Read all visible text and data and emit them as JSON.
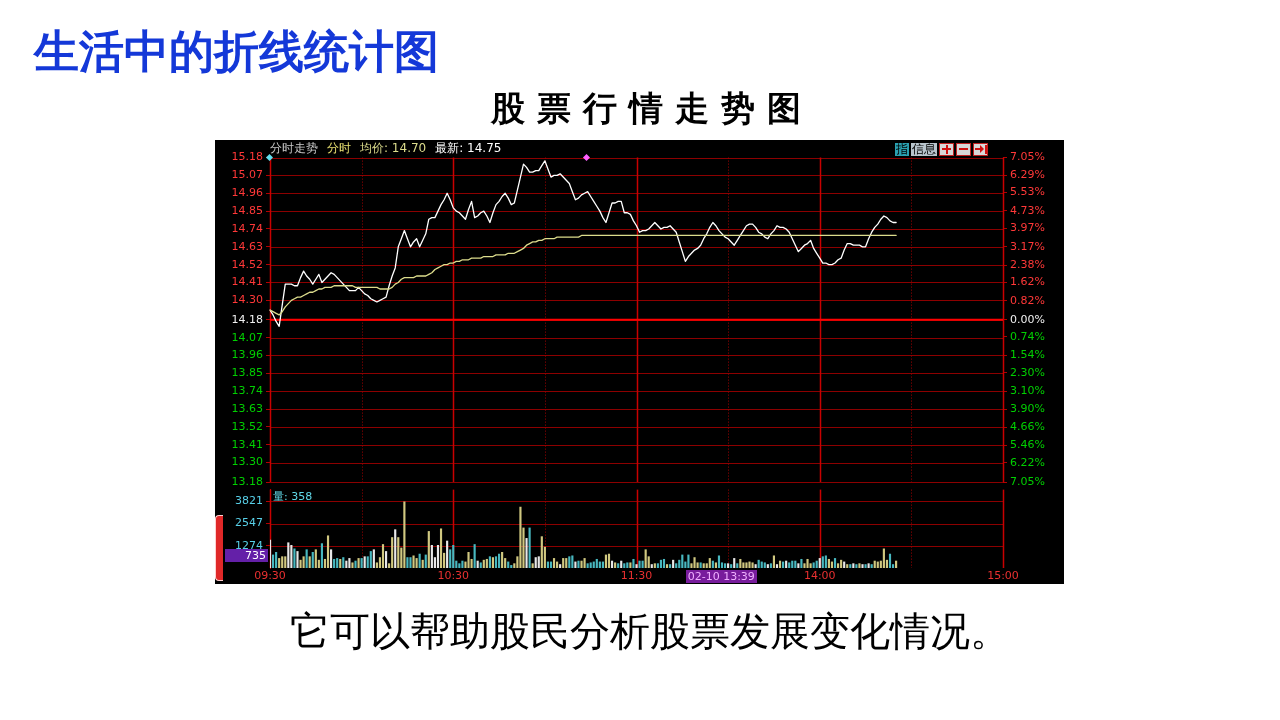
{
  "chart_data": [
    {
      "type": "line",
      "title": "生活中的折线统计图",
      "subtitle": "股票行情走势图",
      "categories": [
        null,
        null,
        null,
        null,
        null,
        null,
        null,
        null,
        null,
        null,
        null,
        null,
        null,
        null,
        null,
        null,
        null,
        null,
        null,
        null,
        null,
        null,
        null,
        null,
        null,
        null,
        null,
        null,
        null,
        null,
        null,
        null,
        null,
        null,
        null,
        null,
        null,
        null,
        null,
        null,
        null,
        null,
        null,
        null,
        null,
        null,
        null,
        null,
        null,
        null,
        null,
        null,
        null,
        null,
        null,
        null,
        null,
        null,
        null,
        null,
        null,
        null,
        null,
        null,
        null,
        null,
        null,
        null,
        null,
        null,
        null,
        null,
        null,
        null,
        null,
        null,
        null,
        null,
        null,
        null,
        null,
        null,
        null,
        null,
        null,
        null,
        null,
        null,
        null,
        null,
        null,
        null,
        null,
        null,
        null,
        null,
        null,
        null,
        null,
        null,
        null,
        null,
        null,
        null,
        null,
        null,
        null,
        null,
        null,
        null,
        null,
        null,
        null,
        null,
        null,
        null,
        null,
        null,
        null,
        null,
        null,
        null,
        null,
        null,
        null,
        null,
        null,
        null,
        null,
        null,
        null,
        null,
        null,
        null,
        null,
        null,
        null,
        null,
        null,
        null,
        null,
        null,
        null,
        null,
        null,
        null,
        null,
        null,
        null,
        null,
        null,
        null,
        null,
        null,
        null,
        null,
        null,
        null,
        null,
        null,
        null,
        null,
        null,
        null,
        null,
        null,
        null,
        null,
        null,
        null,
        null,
        null,
        null,
        null,
        null,
        null,
        null,
        null,
        null,
        null,
        null,
        null,
        null,
        null,
        null,
        null,
        null,
        null,
        null,
        null,
        null,
        null,
        null,
        null,
        null,
        null,
        null,
        null,
        null,
        null,
        null,
        null,
        null,
        null,
        null,
        null,
        null,
        null,
        null,
        null,
        null,
        null,
        null,
        null,
        null,
        null,
        null,
        null,
        null,
        null,
        null,
        null,
        null,
        null,
        null,
        null,
        null,
        null,
        null,
        null,
        null,
        null,
        null,
        null,
        null,
        null,
        null,
        null,
        null,
        null,
        null
      ],
      "series": [
        {
          "name": "均价: 14.70",
          "color": "#dcdc8c",
          "values": [
            14.24,
            14.23,
            14.22,
            14.21,
            14.23,
            14.26,
            14.28,
            14.3,
            14.31,
            14.32,
            14.32,
            14.33,
            14.34,
            14.35,
            14.35,
            14.36,
            14.37,
            14.37,
            14.38,
            14.38,
            14.38,
            14.39,
            14.39,
            14.39,
            14.39,
            14.39,
            14.39,
            14.39,
            14.38,
            14.38,
            14.38,
            14.38,
            14.38,
            14.38,
            14.38,
            14.38,
            14.37,
            14.37,
            14.37,
            14.37,
            14.38,
            14.4,
            14.41,
            14.43,
            14.44,
            14.44,
            14.44,
            14.44,
            14.45,
            14.45,
            14.45,
            14.45,
            14.46,
            14.47,
            14.49,
            14.5,
            14.51,
            14.52,
            14.52,
            14.53,
            14.53,
            14.54,
            14.54,
            14.55,
            14.55,
            14.55,
            14.56,
            14.56,
            14.56,
            14.56,
            14.57,
            14.57,
            14.57,
            14.57,
            14.58,
            14.58,
            14.58,
            14.58,
            14.59,
            14.59,
            14.59,
            14.6,
            14.61,
            14.62,
            14.64,
            14.65,
            14.66,
            14.66,
            14.67,
            14.67,
            14.68,
            14.68,
            14.68,
            14.68,
            14.69,
            14.69,
            14.69,
            14.69,
            14.69,
            14.69,
            14.69,
            14.69,
            14.7,
            14.7,
            14.7,
            14.7,
            14.7,
            14.7,
            14.7,
            14.7,
            14.7,
            14.7,
            14.7,
            14.7,
            14.7,
            14.7,
            14.7,
            14.7,
            14.7,
            14.7,
            14.7,
            14.7,
            14.7,
            14.7,
            14.7,
            14.7,
            14.7,
            14.7,
            14.7,
            14.7,
            14.7,
            14.7,
            14.7,
            14.7,
            14.7,
            14.7,
            14.7,
            14.7,
            14.7,
            14.7,
            14.7,
            14.7,
            14.7,
            14.7,
            14.7,
            14.7,
            14.7,
            14.7,
            14.7,
            14.7,
            14.7,
            14.7,
            14.7,
            14.7,
            14.7,
            14.7,
            14.7,
            14.7,
            14.7,
            14.7,
            14.7,
            14.7,
            14.7,
            14.7,
            14.7,
            14.7,
            14.7,
            14.7,
            14.7,
            14.7,
            14.7,
            14.7,
            14.7,
            14.7,
            14.7,
            14.7,
            14.7,
            14.7,
            14.7,
            14.7,
            14.7,
            14.7,
            14.7,
            14.7,
            14.7,
            14.7,
            14.7,
            14.7,
            14.7,
            14.7,
            14.7,
            14.7,
            14.7,
            14.7,
            14.7,
            14.7,
            14.7,
            14.7,
            14.7,
            14.7,
            14.7,
            14.7,
            14.7,
            14.7,
            14.7,
            14.7,
            null,
            null,
            null,
            null,
            null,
            null,
            null,
            null,
            null,
            null,
            null,
            null,
            null,
            null,
            null,
            null,
            null,
            null,
            null,
            null,
            null,
            null,
            null,
            null,
            null,
            null,
            null,
            null,
            null,
            null,
            null,
            null,
            null,
            null,
            null
          ]
        },
        {
          "name": "最新: 14.75",
          "color": "#ffffff",
          "values": [
            14.24,
            14.21,
            14.17,
            14.14,
            14.27,
            14.4,
            14.4,
            14.4,
            14.39,
            14.39,
            14.44,
            14.48,
            14.45,
            14.43,
            14.4,
            14.43,
            14.46,
            14.41,
            14.43,
            14.45,
            14.47,
            14.46,
            14.44,
            14.42,
            14.4,
            14.38,
            14.36,
            14.36,
            14.36,
            14.38,
            14.36,
            14.34,
            14.33,
            14.31,
            14.3,
            14.29,
            14.3,
            14.31,
            14.32,
            14.39,
            14.45,
            14.5,
            14.63,
            14.68,
            14.73,
            14.68,
            14.63,
            14.66,
            14.68,
            14.63,
            14.67,
            14.71,
            14.8,
            14.81,
            14.81,
            14.85,
            14.89,
            14.92,
            14.96,
            14.92,
            14.87,
            14.85,
            14.84,
            14.82,
            14.8,
            14.86,
            14.91,
            14.81,
            14.82,
            14.84,
            14.85,
            14.82,
            14.78,
            14.84,
            14.89,
            14.91,
            14.94,
            14.96,
            14.93,
            14.89,
            14.9,
            14.98,
            15.06,
            15.14,
            15.12,
            15.09,
            15.09,
            15.1,
            15.1,
            15.13,
            15.16,
            15.11,
            15.06,
            15.07,
            15.07,
            15.08,
            15.06,
            15.04,
            15.02,
            14.97,
            14.92,
            14.93,
            14.95,
            14.96,
            14.97,
            14.94,
            14.91,
            14.88,
            14.85,
            14.81,
            14.78,
            14.84,
            14.9,
            14.9,
            14.91,
            14.91,
            14.84,
            14.84,
            14.83,
            14.79,
            14.76,
            14.72,
            14.73,
            14.73,
            14.74,
            14.76,
            14.78,
            14.76,
            14.74,
            14.75,
            14.75,
            14.76,
            14.74,
            14.72,
            14.66,
            14.6,
            14.54,
            14.57,
            14.59,
            14.61,
            14.62,
            14.64,
            14.68,
            14.71,
            14.75,
            14.78,
            14.76,
            14.73,
            14.71,
            14.69,
            14.68,
            14.66,
            14.64,
            14.67,
            14.7,
            14.73,
            14.76,
            14.77,
            14.77,
            14.75,
            14.72,
            14.71,
            14.69,
            14.68,
            14.71,
            14.73,
            14.76,
            14.75,
            14.75,
            14.74,
            14.72,
            14.68,
            14.64,
            14.6,
            14.62,
            14.64,
            14.65,
            14.67,
            14.62,
            14.59,
            14.56,
            14.53,
            14.53,
            14.52,
            14.52,
            14.53,
            14.55,
            14.56,
            14.61,
            14.65,
            14.65,
            14.64,
            14.64,
            14.64,
            14.63,
            14.63,
            14.68,
            14.72,
            14.75,
            14.77,
            14.8,
            14.82,
            14.81,
            14.79,
            14.78,
            14.78,
            null,
            null,
            null,
            null,
            null,
            null,
            null,
            null,
            null,
            null,
            null,
            null,
            null,
            null,
            null,
            null,
            null,
            null,
            null,
            null,
            null,
            null,
            null,
            null,
            null,
            null,
            null,
            null,
            null,
            null,
            null,
            null,
            null,
            null,
            null
          ]
        }
      ],
      "ylim": [
        13.18,
        15.18
      ],
      "yticks": [
        13.18,
        {
          "value": 13.3,
          "label": "13.30"
        },
        13.41,
        13.52,
        13.63,
        13.74,
        13.85,
        13.96,
        14.07,
        14.18,
        {
          "value": 14.3,
          "label": "14.30"
        },
        14.41,
        14.52,
        14.63,
        14.74,
        14.85,
        14.96,
        15.07,
        15.18
      ],
      "y2lim": [
        -7.05,
        7.05
      ],
      "y2ticks": [
        {
          "value": -7.05,
          "label": "7.05%"
        },
        {
          "value": -6.22,
          "label": "6.22%"
        },
        {
          "value": -5.46,
          "label": "5.46%"
        },
        {
          "value": -4.66,
          "label": "4.66%"
        },
        {
          "value": -3.9,
          "label": "3.90%"
        },
        {
          "value": -3.1,
          "label": "3.10%"
        },
        {
          "value": -2.3,
          "label": "2.30%"
        },
        {
          "value": -1.54,
          "label": "1.54%"
        },
        {
          "value": -0.74,
          "label": "0.74%"
        },
        {
          "value": 0,
          "label": "0.00%"
        },
        {
          "value": 0.82,
          "label": "0.82%"
        },
        {
          "value": 1.62,
          "label": "1.62%"
        },
        {
          "value": 2.38,
          "label": "2.38%"
        },
        {
          "value": 3.17,
          "label": "3.17%"
        },
        {
          "value": 3.97,
          "label": "3.97%"
        },
        {
          "value": 4.73,
          "label": "4.73%"
        },
        {
          "value": 5.53,
          "label": "5.53%"
        },
        {
          "value": 6.29,
          "label": "6.29%"
        },
        {
          "value": 7.05,
          "label": "7.05%"
        }
      ],
      "ref_lines": [
        {
          "axis": "y",
          "value": 14.18,
          "color": "#ff0000"
        }
      ],
      "grid": true,
      "legend": "top left",
      "tick_labels": "y",
      "annotations": [
        "分时走势",
        "分时",
        "指",
        "信息"
      ]
    },
    {
      "type": "bar",
      "categories": [
        "09:30",
        null,
        null,
        null,
        null,
        null,
        null,
        null,
        null,
        null,
        null,
        null,
        null,
        null,
        null,
        null,
        null,
        null,
        null,
        null,
        null,
        null,
        null,
        null,
        null,
        null,
        null,
        null,
        null,
        null,
        null,
        null,
        null,
        null,
        null,
        null,
        null,
        null,
        null,
        null,
        null,
        null,
        null,
        null,
        null,
        null,
        null,
        null,
        null,
        null,
        null,
        null,
        null,
        null,
        null,
        null,
        null,
        null,
        null,
        null,
        "10:30",
        null,
        null,
        null,
        null,
        null,
        null,
        null,
        null,
        null,
        null,
        null,
        null,
        null,
        null,
        null,
        null,
        null,
        null,
        null,
        null,
        null,
        null,
        null,
        null,
        null,
        null,
        null,
        null,
        null,
        null,
        null,
        null,
        null,
        null,
        null,
        null,
        null,
        null,
        null,
        null,
        null,
        null,
        null,
        null,
        null,
        null,
        null,
        null,
        null,
        null,
        null,
        null,
        null,
        null,
        null,
        null,
        null,
        null,
        null,
        "11:30",
        null,
        null,
        null,
        null,
        null,
        null,
        null,
        null,
        null,
        null,
        null,
        null,
        null,
        null,
        null,
        null,
        null,
        null,
        null,
        null,
        null,
        null,
        null,
        null,
        null,
        null,
        null,
        null,
        null,
        null,
        null,
        null,
        null,
        null,
        null,
        null,
        null,
        null,
        null,
        null,
        null,
        null,
        null,
        null,
        null,
        null,
        null,
        null,
        null,
        null,
        null,
        null,
        null,
        null,
        null,
        null,
        null,
        null,
        null,
        "14:00",
        null,
        null,
        null,
        null,
        null,
        null,
        null,
        null,
        null,
        null,
        null,
        null,
        null,
        null,
        null,
        null,
        null,
        null,
        null,
        null,
        null,
        null,
        null,
        null,
        null,
        null,
        null,
        null,
        null,
        null,
        null,
        null,
        null,
        null,
        null,
        null,
        null,
        null,
        null,
        null,
        null,
        null,
        null,
        null,
        null,
        null,
        null,
        null,
        null,
        null,
        null,
        null,
        null,
        null,
        null,
        null,
        null,
        null,
        null,
        "15:00"
      ],
      "values": [
        1600,
        750,
        900,
        550,
        650,
        650,
        1450,
        1300,
        1100,
        950,
        450,
        650,
        1050,
        650,
        900,
        1050,
        450,
        1400,
        500,
        1850,
        1050,
        500,
        550,
        500,
        600,
        400,
        550,
        300,
        400,
        550,
        550,
        650,
        650,
        950,
        1050,
        300,
        600,
        1350,
        950,
        250,
        1750,
        2200,
        1750,
        1150,
        3800,
        600,
        600,
        700,
        550,
        800,
        450,
        750,
        2100,
        1300,
        600,
        1300,
        2250,
        850,
        1550,
        1050,
        1300,
        400,
        250,
        400,
        350,
        900,
        500,
        1350,
        400,
        300,
        450,
        500,
        650,
        600,
        650,
        800,
        900,
        550,
        350,
        150,
        250,
        650,
        3500,
        2300,
        1700,
        2300,
        250,
        600,
        650,
        1800,
        1200,
        350,
        350,
        550,
        350,
        200,
        550,
        550,
        650,
        700,
        350,
        400,
        400,
        550,
        250,
        300,
        350,
        500,
        350,
        350,
        750,
        800,
        400,
        300,
        250,
        400,
        250,
        300,
        300,
        500,
        200,
        400,
        400,
        1050,
        650,
        200,
        250,
        250,
        450,
        500,
        200,
        200,
        450,
        250,
        450,
        750,
        350,
        750,
        250,
        600,
        300,
        300,
        250,
        250,
        550,
        400,
        300,
        700,
        300,
        250,
        250,
        200,
        550,
        250,
        500,
        300,
        300,
        350,
        300,
        200,
        450,
        350,
        300,
        200,
        250,
        700,
        200,
        400,
        350,
        400,
        300,
        400,
        400,
        250,
        500,
        250,
        500,
        250,
        300,
        400,
        550,
        650,
        700,
        500,
        350,
        550,
        250,
        450,
        350,
        200,
        200,
        250,
        200,
        250,
        200,
        200,
        250,
        200,
        400,
        350,
        400,
        1100,
        450,
        800,
        200,
        400,
        null,
        null,
        null,
        null,
        null,
        null,
        null,
        null,
        null,
        null,
        null,
        null,
        null,
        null,
        null,
        null,
        null,
        null,
        null,
        null,
        null,
        null,
        null,
        null,
        null,
        null,
        null,
        null,
        null,
        null,
        null,
        null,
        null,
        null,
        null
      ],
      "colors": [
        "#e8e8e8",
        "#48b8c0",
        "#48b8c0",
        "#d0c880",
        "#d0c880",
        "#d0c880",
        "#e8e8e8",
        "#e8e8e8",
        "#48b8c0",
        "#e8e8e8",
        "#d0c880",
        "#d0c880",
        "#48b8c0",
        "#d0c880",
        "#48b8c0",
        "#d0c880",
        "#d0c880",
        "#48b8c0",
        "#d0c880",
        "#d0c880",
        "#e8e8e8",
        "#48b8c0",
        "#48b8c0",
        "#d0c880",
        "#48b8c0",
        "#e8e8e8",
        "#e8e8e8",
        "#d0c880",
        "#48b8c0",
        "#d0c880",
        "#48b8c0",
        "#e8e8e8",
        "#48b8c0",
        "#48b8c0",
        "#e8e8e8",
        "#d0c880",
        "#d0c880",
        "#d0c880",
        "#e8e8e8",
        "#d0c880",
        "#d0c880",
        "#e8e8e8",
        "#d0c880",
        "#d0c880",
        "#d0c880",
        "#48b8c0",
        "#48b8c0",
        "#d0c880",
        "#d0c880",
        "#48b8c0",
        "#d0c880",
        "#48b8c0",
        "#d0c880",
        "#e8e8e8",
        "#e8e8e8",
        "#e8e8e8",
        "#d0c880",
        "#d0c880",
        "#e8e8e8",
        "#48b8c0",
        "#48b8c0",
        "#48b8c0",
        "#48b8c0",
        "#48b8c0",
        "#d0c880",
        "#d0c880",
        "#d0c880",
        "#48b8c0",
        "#e8e8e8",
        "#48b8c0",
        "#d0c880",
        "#d0c880",
        "#48b8c0",
        "#d0c880",
        "#48b8c0",
        "#48b8c0",
        "#d0c880",
        "#d0c880",
        "#48b8c0",
        "#48b8c0",
        "#d0c880",
        "#d0c880",
        "#d0c880",
        "#d0c880",
        "#e8e8e8",
        "#48b8c0",
        "#d0c880",
        "#e8e8e8",
        "#e8e8e8",
        "#d0c880",
        "#d0c880",
        "#48b8c0",
        "#48b8c0",
        "#d0c880",
        "#d0c880",
        "#e8e8e8",
        "#d0c880",
        "#d0c880",
        "#48b8c0",
        "#48b8c0",
        "#e8e8e8",
        "#48b8c0",
        "#d0c880",
        "#d0c880",
        "#48b8c0",
        "#48b8c0",
        "#48b8c0",
        "#48b8c0",
        "#48b8c0",
        "#48b8c0",
        "#d0c880",
        "#d0c880",
        "#e8e8e8",
        "#d0c880",
        "#48b8c0",
        "#e8e8e8",
        "#48b8c0",
        "#48b8c0",
        "#d0c880",
        "#48b8c0",
        "#e8e8e8",
        "#48b8c0",
        "#48b8c0",
        "#d0c880",
        "#d0c880",
        "#e8e8e8",
        "#d0c880",
        "#48b8c0",
        "#48b8c0",
        "#48b8c0",
        "#d0c880",
        "#48b8c0",
        "#e8e8e8",
        "#48b8c0",
        "#48b8c0",
        "#48b8c0",
        "#48b8c0",
        "#48b8c0",
        "#d0c880",
        "#d0c880",
        "#d0c880",
        "#48b8c0",
        "#d0c880",
        "#d0c880",
        "#d0c880",
        "#48b8c0",
        "#d0c880",
        "#48b8c0",
        "#48b8c0",
        "#48b8c0",
        "#e8e8e8",
        "#48b8c0",
        "#e8e8e8",
        "#48b8c0",
        "#d0c880",
        "#d0c880",
        "#d0c880",
        "#d0c880",
        "#d0c880",
        "#e8e8e8",
        "#48b8c0",
        "#48b8c0",
        "#48b8c0",
        "#e8e8e8",
        "#48b8c0",
        "#d0c880",
        "#e8e8e8",
        "#d0c880",
        "#48b8c0",
        "#e8e8e8",
        "#48b8c0",
        "#48b8c0",
        "#48b8c0",
        "#e8e8e8",
        "#48b8c0",
        "#d0c880",
        "#d0c880",
        "#d0c880",
        "#48b8c0",
        "#48b8c0",
        "#e8e8e8",
        "#48b8c0",
        "#48b8c0",
        "#d0c880",
        "#d0c880",
        "#48b8c0",
        "#d0c880",
        "#d0c880",
        "#e8e8e8",
        "#d0c880",
        "#48b8c0",
        "#e8e8e8",
        "#48b8c0",
        "#d0c880",
        "#e8e8e8",
        "#48b8c0",
        "#e8e8e8",
        "#48b8c0",
        "#d0c880",
        "#d0c880",
        "#d0c880",
        "#d0c880",
        "#d0c880",
        "#48b8c0",
        "#48b8c0",
        "#d0c880",
        null,
        null,
        null,
        null,
        null,
        null,
        null,
        null,
        null,
        null,
        null,
        null,
        null,
        null,
        null,
        null,
        null,
        null,
        null,
        null,
        null,
        null,
        null,
        null,
        null,
        null,
        null,
        null,
        null,
        null,
        null,
        null,
        null,
        null,
        null
      ],
      "ylim": [
        0,
        4500
      ],
      "yticks": [
        1274,
        2547,
        3821
      ],
      "grid": true,
      "annotations": [
        "量: 358",
        "735",
        "02-10 13:39",
        "它可以帮助股民分析股票发展变化情况。"
      ]
    }
  ]
}
